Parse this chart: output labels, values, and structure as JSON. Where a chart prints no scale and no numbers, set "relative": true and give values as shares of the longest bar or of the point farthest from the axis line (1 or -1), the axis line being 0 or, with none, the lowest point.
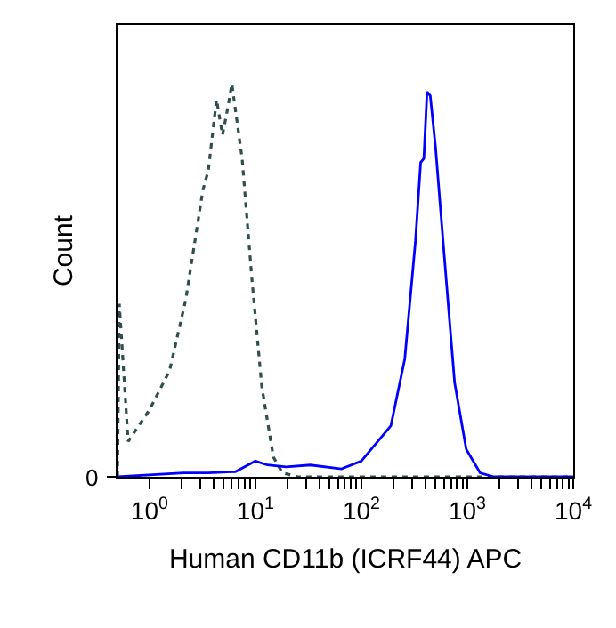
{
  "chart_data": {
    "type": "line",
    "xlabel": "Human CD11b (ICRF44) APC",
    "ylabel": "Count",
    "relative": true,
    "log": "x",
    "marker": "none",
    "xlim": [
      0.5,
      10000
    ],
    "xticks": [
      {
        "value": 1,
        "label": "10$^{0}$"
      },
      {
        "value": 2,
        "label": null
      },
      {
        "value": 3,
        "label": null
      },
      {
        "value": 4,
        "label": null
      },
      {
        "value": 5,
        "label": null
      },
      {
        "value": 6,
        "label": null
      },
      {
        "value": 7,
        "label": null
      },
      {
        "value": 8,
        "label": null
      },
      {
        "value": 9,
        "label": null
      },
      {
        "value": 10,
        "label": "10$^{1}$"
      },
      {
        "value": 20,
        "label": null
      },
      {
        "value": 30,
        "label": null
      },
      {
        "value": 40,
        "label": null
      },
      {
        "value": 50,
        "label": null
      },
      {
        "value": 60,
        "label": null
      },
      {
        "value": 70,
        "label": null
      },
      {
        "value": 80,
        "label": null
      },
      {
        "value": 90,
        "label": null
      },
      {
        "value": 100,
        "label": "10$^{2}$"
      },
      {
        "value": 200,
        "label": null
      },
      {
        "value": 300,
        "label": null
      },
      {
        "value": 400,
        "label": null
      },
      {
        "value": 500,
        "label": null
      },
      {
        "value": 600,
        "label": null
      },
      {
        "value": 700,
        "label": null
      },
      {
        "value": 800,
        "label": null
      },
      {
        "value": 900,
        "label": null
      },
      {
        "value": 1000,
        "label": "10$^{3}$"
      },
      {
        "value": 2000,
        "label": null
      },
      {
        "value": 3000,
        "label": null
      },
      {
        "value": 4000,
        "label": null
      },
      {
        "value": 5000,
        "label": null
      },
      {
        "value": 6000,
        "label": null
      },
      {
        "value": 7000,
        "label": null
      },
      {
        "value": 8000,
        "label": null
      },
      {
        "value": 9000,
        "label": null
      },
      {
        "value": 10000,
        "label": "10$^{4}$"
      }
    ],
    "annotations": [
      "0"
    ],
    "series": [
      {
        "color": "#2f4f4f",
        "line_style": "dotted",
        "x": [
          0.5,
          0.52,
          0.63,
          1.0,
          1.55,
          2.2,
          3.2,
          3.6,
          4.3,
          4.9,
          5.5,
          6.0,
          7.5,
          9.3,
          11.5,
          14.8,
          18,
          25,
          10000
        ],
        "values": [
          0,
          0.44,
          0.09,
          0.17,
          0.27,
          0.45,
          0.73,
          0.78,
          0.96,
          0.87,
          0.94,
          1.0,
          0.81,
          0.5,
          0.23,
          0.05,
          0.01,
          0,
          0
        ]
      },
      {
        "color": "#0000ff",
        "line_style": "solid",
        "x": [
          0.5,
          2.1,
          3.6,
          6.5,
          10,
          13,
          19.5,
          33,
          65,
          100,
          190,
          257,
          324,
          363,
          389,
          417,
          447,
          501,
          603,
          759,
          977,
          1320,
          1780,
          10000
        ],
        "values": [
          0,
          0.01,
          0.01,
          0.013,
          0.04,
          0.03,
          0.025,
          0.03,
          0.02,
          0.04,
          0.13,
          0.3,
          0.6,
          0.8,
          0.81,
          0.98,
          0.97,
          0.84,
          0.57,
          0.24,
          0.07,
          0.01,
          0,
          0
        ]
      }
    ]
  }
}
